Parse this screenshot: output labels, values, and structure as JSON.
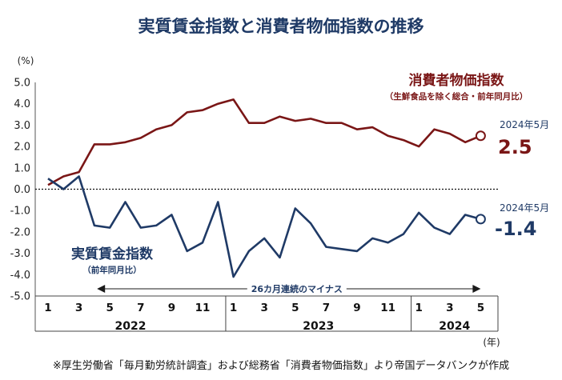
{
  "title": "実質賃金指数と消費者物価指数の推移",
  "unit_label": "(%)",
  "year_unit": "(年)",
  "source": "※厚生労働省「毎月勤労統計調査」および総務省「消費者物価指数」より帝国データバンクが作成",
  "arrow_label": "26カ月連続のマイナス",
  "cpi_label": "消費者物価指数",
  "cpi_sublabel": "（生鮮食品を除く総合・前年同月比）",
  "wage_label": "実質賃金指数",
  "wage_sublabel": "（前年同月比）",
  "cpi_last_date": "2024年5月",
  "cpi_last_value": "2.5",
  "wage_last_date": "2024年5月",
  "wage_last_value": "-1.4",
  "colors": {
    "cpi": "#7a1616",
    "wage": "#1f3a66"
  },
  "chart_data": {
    "type": "line",
    "title": "実質賃金指数と消費者物価指数の推移",
    "ylabel": "(%)",
    "xlabel": "(年)",
    "ylim": [
      -5.0,
      5.0
    ],
    "yticks": [
      "5.0",
      "4.0",
      "3.0",
      "2.0",
      "1.0",
      "0.0",
      "-1.0",
      "-2.0",
      "-3.0",
      "-4.0",
      "-5.0"
    ],
    "month_ticks": [
      {
        "i": 0,
        "label": "1"
      },
      {
        "i": 2,
        "label": "3"
      },
      {
        "i": 4,
        "label": "5"
      },
      {
        "i": 6,
        "label": "7"
      },
      {
        "i": 8,
        "label": "9"
      },
      {
        "i": 10,
        "label": "11"
      },
      {
        "i": 12,
        "label": "1"
      },
      {
        "i": 14,
        "label": "3"
      },
      {
        "i": 16,
        "label": "5"
      },
      {
        "i": 18,
        "label": "7"
      },
      {
        "i": 20,
        "label": "9"
      },
      {
        "i": 22,
        "label": "11"
      },
      {
        "i": 24,
        "label": "1"
      },
      {
        "i": 26,
        "label": "3"
      },
      {
        "i": 28,
        "label": "5"
      }
    ],
    "years": [
      {
        "label": "2022",
        "start": 0,
        "end": 11
      },
      {
        "label": "2023",
        "start": 12,
        "end": 23
      },
      {
        "label": "2024",
        "start": 24,
        "end": 28
      }
    ],
    "series": [
      {
        "name": "消費者物価指数",
        "values": [
          0.2,
          0.6,
          0.8,
          2.1,
          2.1,
          2.2,
          2.4,
          2.8,
          3.0,
          3.6,
          3.7,
          4.0,
          4.2,
          3.1,
          3.1,
          3.4,
          3.2,
          3.3,
          3.1,
          3.1,
          2.8,
          2.9,
          2.5,
          2.3,
          2.0,
          2.8,
          2.6,
          2.2,
          2.5
        ]
      },
      {
        "name": "実質賃金指数",
        "values": [
          0.5,
          0.0,
          0.6,
          -1.7,
          -1.8,
          -0.6,
          -1.8,
          -1.7,
          -1.2,
          -2.9,
          -2.5,
          -0.6,
          -4.1,
          -2.9,
          -2.3,
          -3.2,
          -0.9,
          -1.6,
          -2.7,
          -2.8,
          -2.9,
          -2.3,
          -2.5,
          -2.1,
          -1.1,
          -1.8,
          -2.1,
          -1.2,
          -1.4
        ]
      }
    ],
    "reference_line": 0.0,
    "annotation": {
      "label": "26カ月連続のマイナス",
      "from_month": 4,
      "to_month": 28
    }
  }
}
